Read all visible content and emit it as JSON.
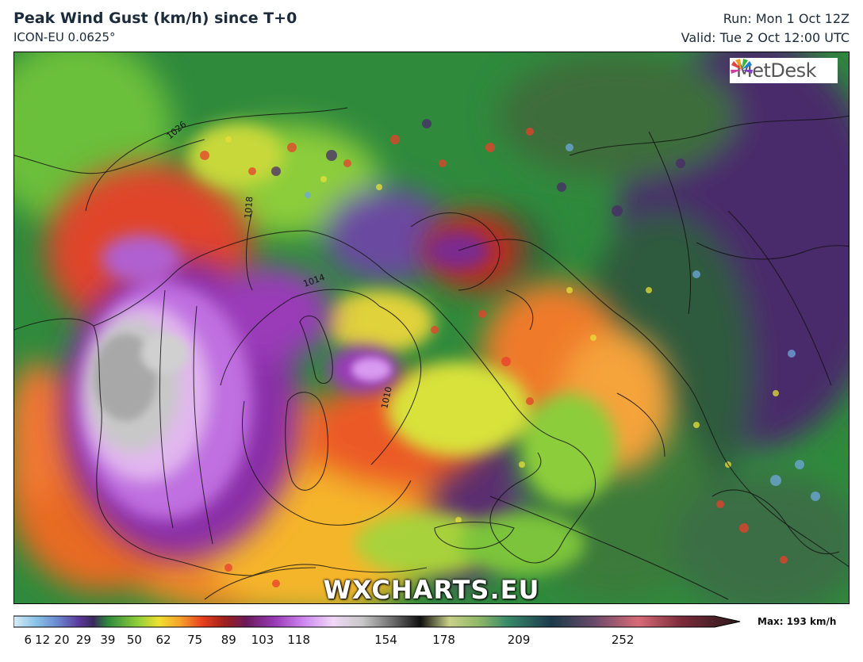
{
  "header": {
    "title": "Peak Wind Gust (km/h) since T+0",
    "model": "ICON-EU 0.0625°",
    "run": "Run: Mon 1 Oct 12Z",
    "valid": "Valid: Tue 2 Oct 12:00 UTC"
  },
  "logo": {
    "text": "MetDesk"
  },
  "watermark": "WXCHARTS.EU",
  "isobars": [
    "1026",
    "1018",
    "1014",
    "1010"
  ],
  "legend": {
    "ticks": [
      "6",
      "12",
      "20",
      "29",
      "39",
      "50",
      "62",
      "75",
      "89",
      "103",
      "118",
      "154",
      "178",
      "209",
      "252"
    ],
    "tick_values": [
      6,
      12,
      20,
      29,
      39,
      50,
      62,
      75,
      89,
      103,
      118,
      154,
      178,
      209,
      252
    ],
    "range": [
      0,
      290
    ],
    "max_label": "Max: 193 km/h"
  },
  "colors": {
    "calm": "#6fa8dc",
    "moderate": "#e8e03a",
    "strong": "#e8401e",
    "severe": "#a83ad8",
    "extreme": "#c8c8c8"
  }
}
